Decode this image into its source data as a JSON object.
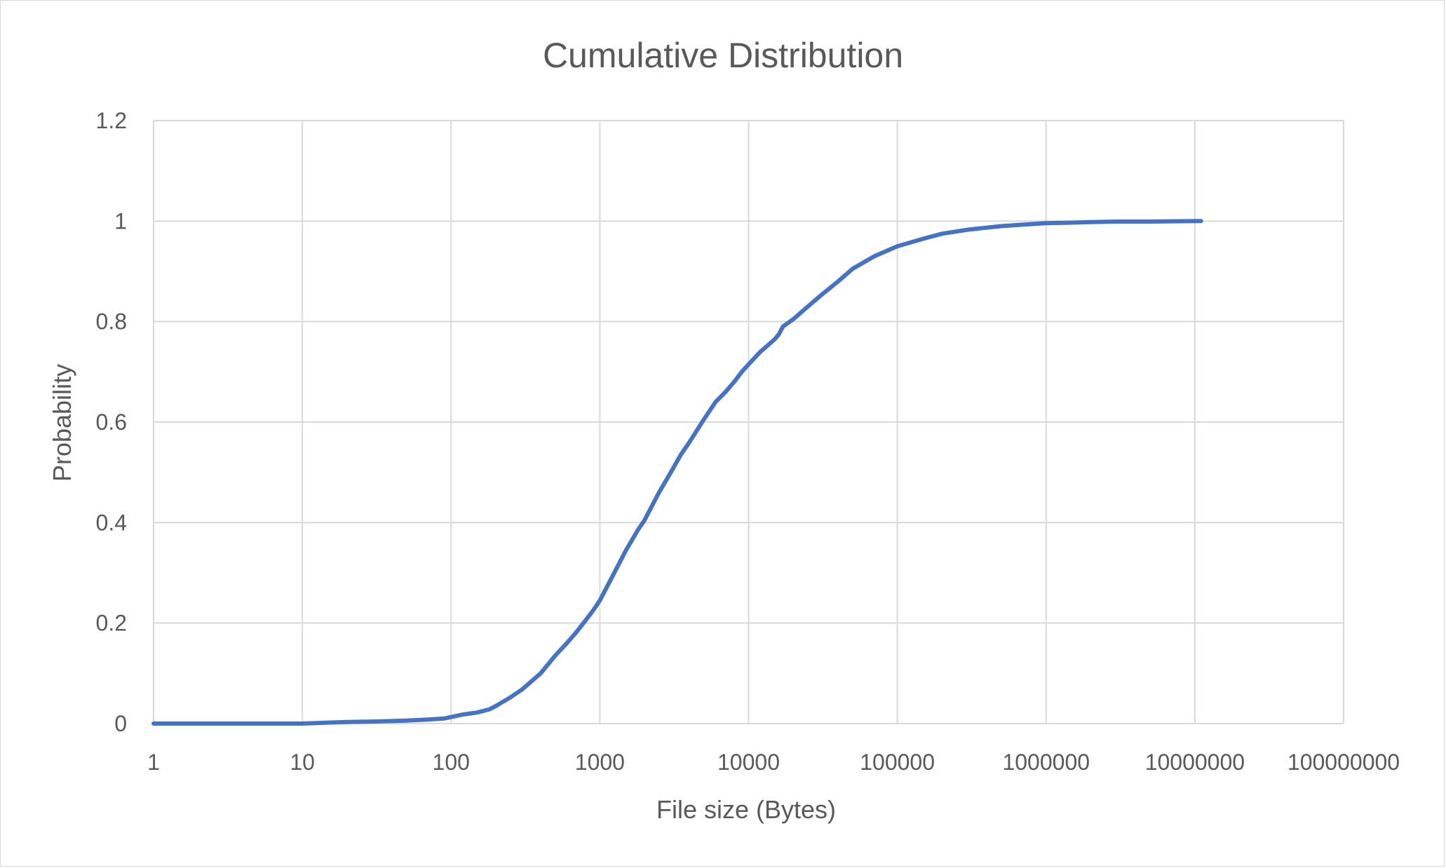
{
  "chart_data": {
    "type": "line",
    "title": "Cumulative Distribution",
    "xlabel": "File size (Bytes)",
    "ylabel": "Probability",
    "x_scale": "log",
    "xlim": [
      1,
      100000000
    ],
    "ylim": [
      0,
      1.2
    ],
    "x_ticks": [
      "1",
      "10",
      "100",
      "1000",
      "10000",
      "100000",
      "1000000",
      "10000000",
      "100000000"
    ],
    "y_ticks": [
      "0",
      "0.2",
      "0.4",
      "0.6",
      "0.8",
      "1",
      "1.2"
    ],
    "grid": true,
    "legend": "none",
    "series": [
      {
        "color": "#4472c4",
        "x": [
          1,
          5,
          10,
          15,
          20,
          30,
          50,
          70,
          90,
          100,
          120,
          150,
          180,
          200,
          250,
          300,
          400,
          500,
          600,
          700,
          800,
          900,
          1000,
          1200,
          1500,
          1800,
          2000,
          2500,
          3000,
          3500,
          4000,
          5000,
          6000,
          7000,
          8000,
          9000,
          10000,
          12000,
          15000,
          16000,
          17000,
          20000,
          25000,
          30000,
          40000,
          50000,
          70000,
          100000,
          150000,
          200000,
          300000,
          500000,
          700000,
          1000000,
          1500000,
          2000000,
          3000000,
          5000000,
          11000000
        ],
        "y": [
          0,
          0,
          0,
          0.002,
          0.003,
          0.004,
          0.006,
          0.008,
          0.01,
          0.013,
          0.018,
          0.022,
          0.028,
          0.035,
          0.052,
          0.068,
          0.1,
          0.135,
          0.16,
          0.183,
          0.205,
          0.225,
          0.245,
          0.29,
          0.345,
          0.385,
          0.405,
          0.46,
          0.5,
          0.535,
          0.56,
          0.605,
          0.64,
          0.66,
          0.68,
          0.7,
          0.715,
          0.74,
          0.765,
          0.775,
          0.79,
          0.805,
          0.83,
          0.85,
          0.88,
          0.905,
          0.93,
          0.95,
          0.965,
          0.975,
          0.983,
          0.99,
          0.993,
          0.996,
          0.997,
          0.998,
          0.999,
          0.999,
          1.0
        ]
      }
    ]
  }
}
